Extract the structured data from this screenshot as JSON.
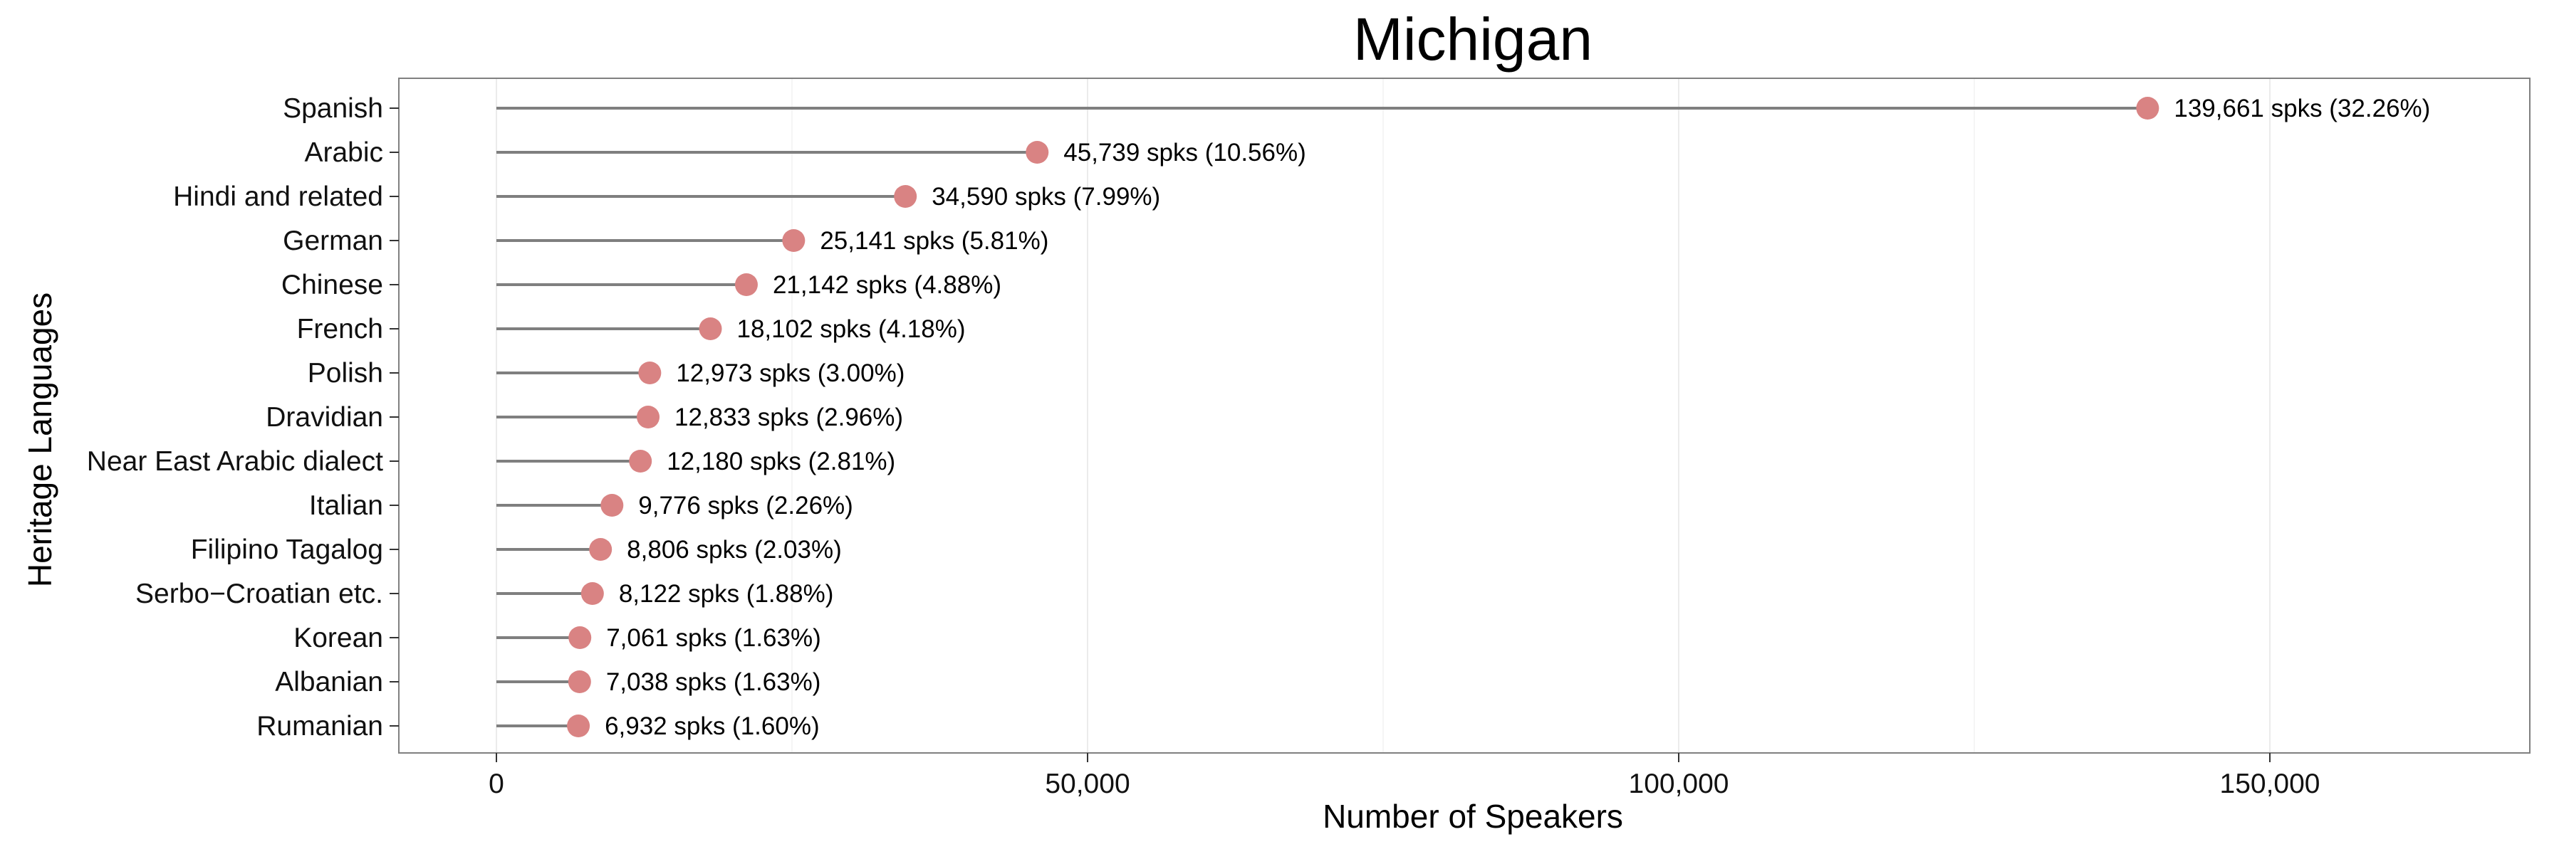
{
  "chart_data": {
    "type": "lollipop",
    "title": "Michigan",
    "xlabel": "Number of Speakers",
    "ylabel": "Heritage Languages",
    "xlim": [
      -8700,
      180000
    ],
    "x_ticks": [
      0,
      50000,
      100000,
      150000
    ],
    "x_tick_labels": [
      "0",
      "50,000",
      "100,000",
      "150,000"
    ],
    "grid": true,
    "legend": "none",
    "colors": {
      "point": "#d98383",
      "stem": "#7f7f7f",
      "grid_major": "#ebebeb",
      "grid_minor": "#f5f5f5",
      "panel_border": "#808080"
    },
    "categories": [
      "Spanish",
      "Arabic",
      "Hindi and related",
      "German",
      "Chinese",
      "French",
      "Polish",
      "Dravidian",
      "Near East Arabic dialect",
      "Italian",
      "Filipino Tagalog",
      "Serbo−Croatian etc.",
      "Korean",
      "Albanian",
      "Rumanian"
    ],
    "values": [
      139661,
      45739,
      34590,
      25141,
      21142,
      18102,
      12973,
      12833,
      12180,
      9776,
      8806,
      8122,
      7061,
      7038,
      6932
    ],
    "data_labels": [
      "139,661 spks (32.26%)",
      "45,739 spks (10.56%)",
      "34,590 spks (7.99%)",
      "25,141 spks (5.81%)",
      "21,142 spks (4.88%)",
      "18,102 spks (4.18%)",
      "12,973 spks (3.00%)",
      "12,833 spks (2.96%)",
      "12,180 spks (2.81%)",
      "9,776 spks (2.26%)",
      "8,806 spks (2.03%)",
      "8,122 spks (1.88%)",
      "7,061 spks (1.63%)",
      "7,038 spks (1.63%)",
      "6,932 spks (1.60%)"
    ]
  }
}
